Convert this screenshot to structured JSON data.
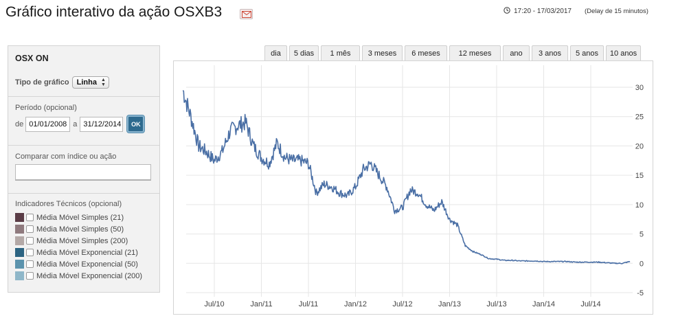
{
  "header": {
    "title": "Gráfico interativo da ação OSXB3",
    "timestamp": "17:20 - 17/03/2017",
    "delay": "(Delay de 15 minutos)"
  },
  "panel": {
    "stock_name": "OSX ON",
    "chart_type_label": "Tipo de gráfico",
    "chart_type_value": "Linha",
    "period_label": "Período (opcional)",
    "from_label": "de",
    "from_value": "01/01/2008",
    "to_label": "a",
    "to_value": "31/12/2014",
    "ok_label": "OK",
    "compare_label": "Comparar com índice ou ação",
    "compare_placeholder": "",
    "indicators_label": "Indicadores Técnicos (opcional)",
    "indicators": [
      {
        "label": "Média Móvel Simples (21)",
        "color": "#5a3c46"
      },
      {
        "label": "Média Móvel Simples (50)",
        "color": "#8f7a7e"
      },
      {
        "label": "Média Móvel Simples (200)",
        "color": "#b4a9a7"
      },
      {
        "label": "Média Móvel Exponencial (21)",
        "color": "#2c6482"
      },
      {
        "label": "Média Móvel Exponencial (50)",
        "color": "#5c93ad"
      },
      {
        "label": "Média Móvel Exponencial (200)",
        "color": "#8fb7c9"
      }
    ]
  },
  "tabs": [
    "dia",
    "5 dias",
    "1 mês",
    "3 meses",
    "6 meses",
    "12 meses",
    "ano",
    "3 anos",
    "5 anos",
    "10 anos"
  ],
  "chart_data": {
    "type": "line",
    "title": "",
    "xlabel": "",
    "ylabel": "",
    "ylim": [
      -5,
      30
    ],
    "yticks": [
      30,
      25,
      20,
      15,
      10,
      5,
      0,
      -5
    ],
    "xticks": [
      "Jul/10",
      "Jan/11",
      "Jul/11",
      "Jan/12",
      "Jul/12",
      "Jan/13",
      "Jul/13",
      "Jan/14",
      "Jul/14"
    ],
    "line_color": "#4a6fa5",
    "grid": true,
    "series": [
      {
        "name": "",
        "x": [
          "2010-03",
          "2010-04",
          "2010-05",
          "2010-06",
          "2010-07",
          "2010-08",
          "2010-09",
          "2010-10",
          "2010-11",
          "2010-12",
          "2011-01",
          "2011-02",
          "2011-03",
          "2011-04",
          "2011-05",
          "2011-06",
          "2011-07",
          "2011-08",
          "2011-09",
          "2011-10",
          "2011-11",
          "2011-12",
          "2012-01",
          "2012-02",
          "2012-03",
          "2012-04",
          "2012-05",
          "2012-06",
          "2012-07",
          "2012-08",
          "2012-09",
          "2012-10",
          "2012-11",
          "2012-12",
          "2013-01",
          "2013-02",
          "2013-03",
          "2013-04",
          "2013-05",
          "2013-06",
          "2013-07",
          "2013-08",
          "2013-09",
          "2013-10",
          "2013-11",
          "2013-12",
          "2014-01",
          "2014-02",
          "2014-03",
          "2014-04",
          "2014-05",
          "2014-06",
          "2014-07",
          "2014-08",
          "2014-09",
          "2014-10",
          "2014-11",
          "2014-12"
        ],
        "values": [
          29.5,
          25.0,
          20.0,
          19.0,
          17.5,
          19.0,
          22.5,
          23.5,
          24.0,
          20.0,
          18.0,
          17.0,
          20.5,
          18.0,
          17.5,
          17.5,
          17.0,
          12.0,
          13.5,
          13.0,
          12.0,
          11.5,
          13.0,
          16.0,
          17.0,
          15.0,
          13.0,
          9.0,
          9.5,
          12.5,
          12.0,
          10.0,
          9.0,
          10.5,
          7.5,
          6.5,
          3.0,
          2.0,
          1.5,
          0.8,
          0.7,
          0.5,
          0.5,
          0.4,
          0.4,
          0.4,
          0.3,
          0.3,
          0.3,
          0.3,
          0.2,
          0.2,
          0.2,
          0.2,
          0.1,
          0.0,
          0.0,
          0.3
        ]
      }
    ]
  }
}
